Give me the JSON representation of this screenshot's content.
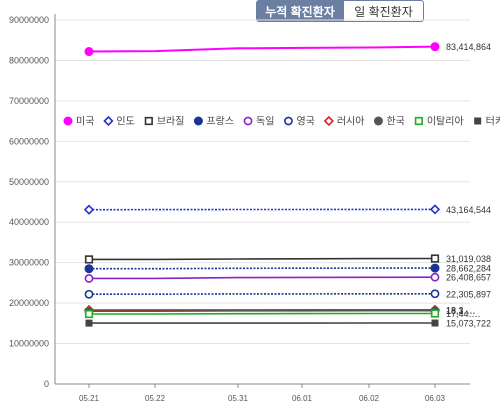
{
  "tabs": {
    "cumulative": "누적 확진환자",
    "daily": "일 확진환자"
  },
  "chart_data": {
    "type": "line",
    "title": "",
    "xlabel": "",
    "ylabel": "",
    "categories": [
      "05.21",
      "05.22",
      "05.31",
      "06.01",
      "06.02",
      "06.03"
    ],
    "ylim": [
      0,
      90000000
    ],
    "yticks": [
      "0",
      "10000000",
      "20000000",
      "30000000",
      "40000000",
      "50000000",
      "60000000",
      "70000000",
      "80000000",
      "90000000"
    ],
    "grid": true,
    "legend_position": "middle",
    "series": [
      {
        "name": "미국",
        "color": "#ff00ff",
        "marker": "filled-circle",
        "dashed": false,
        "values": [
          82200000,
          82300000,
          83000000,
          83100000,
          83200000,
          83414864
        ],
        "end_label": "83,414,864"
      },
      {
        "name": "인도",
        "color": "#2233cc",
        "marker": "open-diamond",
        "dashed": true,
        "values": [
          43100000,
          43110000,
          43140000,
          43150000,
          43158000,
          43164544
        ],
        "end_label": "43,164,544"
      },
      {
        "name": "브라질",
        "color": "#333333",
        "marker": "open-square",
        "dashed": false,
        "values": [
          30800000,
          30810000,
          30900000,
          30950000,
          31000000,
          31019038
        ],
        "end_label": "31,019,038"
      },
      {
        "name": "프랑스",
        "color": "#1a3399",
        "marker": "filled-circle",
        "dashed": true,
        "values": [
          28500000,
          28510000,
          28600000,
          28630000,
          28650000,
          28662284
        ],
        "end_label": "28,662,284"
      },
      {
        "name": "독일",
        "color": "#8822cc",
        "marker": "open-circle",
        "dashed": false,
        "values": [
          26100000,
          26120000,
          26300000,
          26350000,
          26390000,
          26408657
        ],
        "end_label": "26,408,657"
      },
      {
        "name": "영국",
        "color": "#1a3399",
        "marker": "open-circle",
        "dashed": true,
        "values": [
          22200000,
          22210000,
          22270000,
          22280000,
          22295000,
          22305897
        ],
        "end_label": "22,305,897"
      },
      {
        "name": "러시아",
        "color": "#dd2222",
        "marker": "open-diamond",
        "dashed": false,
        "values": [
          18300000,
          18310000,
          18330000,
          18335000,
          18340000,
          18343000
        ],
        "end_label": "18,3‥‥"
      },
      {
        "name": "한국",
        "color": "#555555",
        "marker": "filled-circle",
        "dashed": false,
        "values": [
          18000000,
          18010000,
          18100000,
          18110000,
          18120000,
          18131000
        ],
        "end_label": "18,1‥‥"
      },
      {
        "name": "이탈리아",
        "color": "#22aa22",
        "marker": "open-square",
        "dashed": false,
        "values": [
          17300000,
          17310000,
          17380000,
          17410000,
          17430000,
          17440000
        ],
        "end_label": "17,44‥‥"
      },
      {
        "name": "터키",
        "color": "#444444",
        "marker": "filled-square",
        "dashed": false,
        "values": [
          15050000,
          15055000,
          15065000,
          15068000,
          15071000,
          15073722
        ],
        "end_label": "15,073,722"
      }
    ]
  }
}
